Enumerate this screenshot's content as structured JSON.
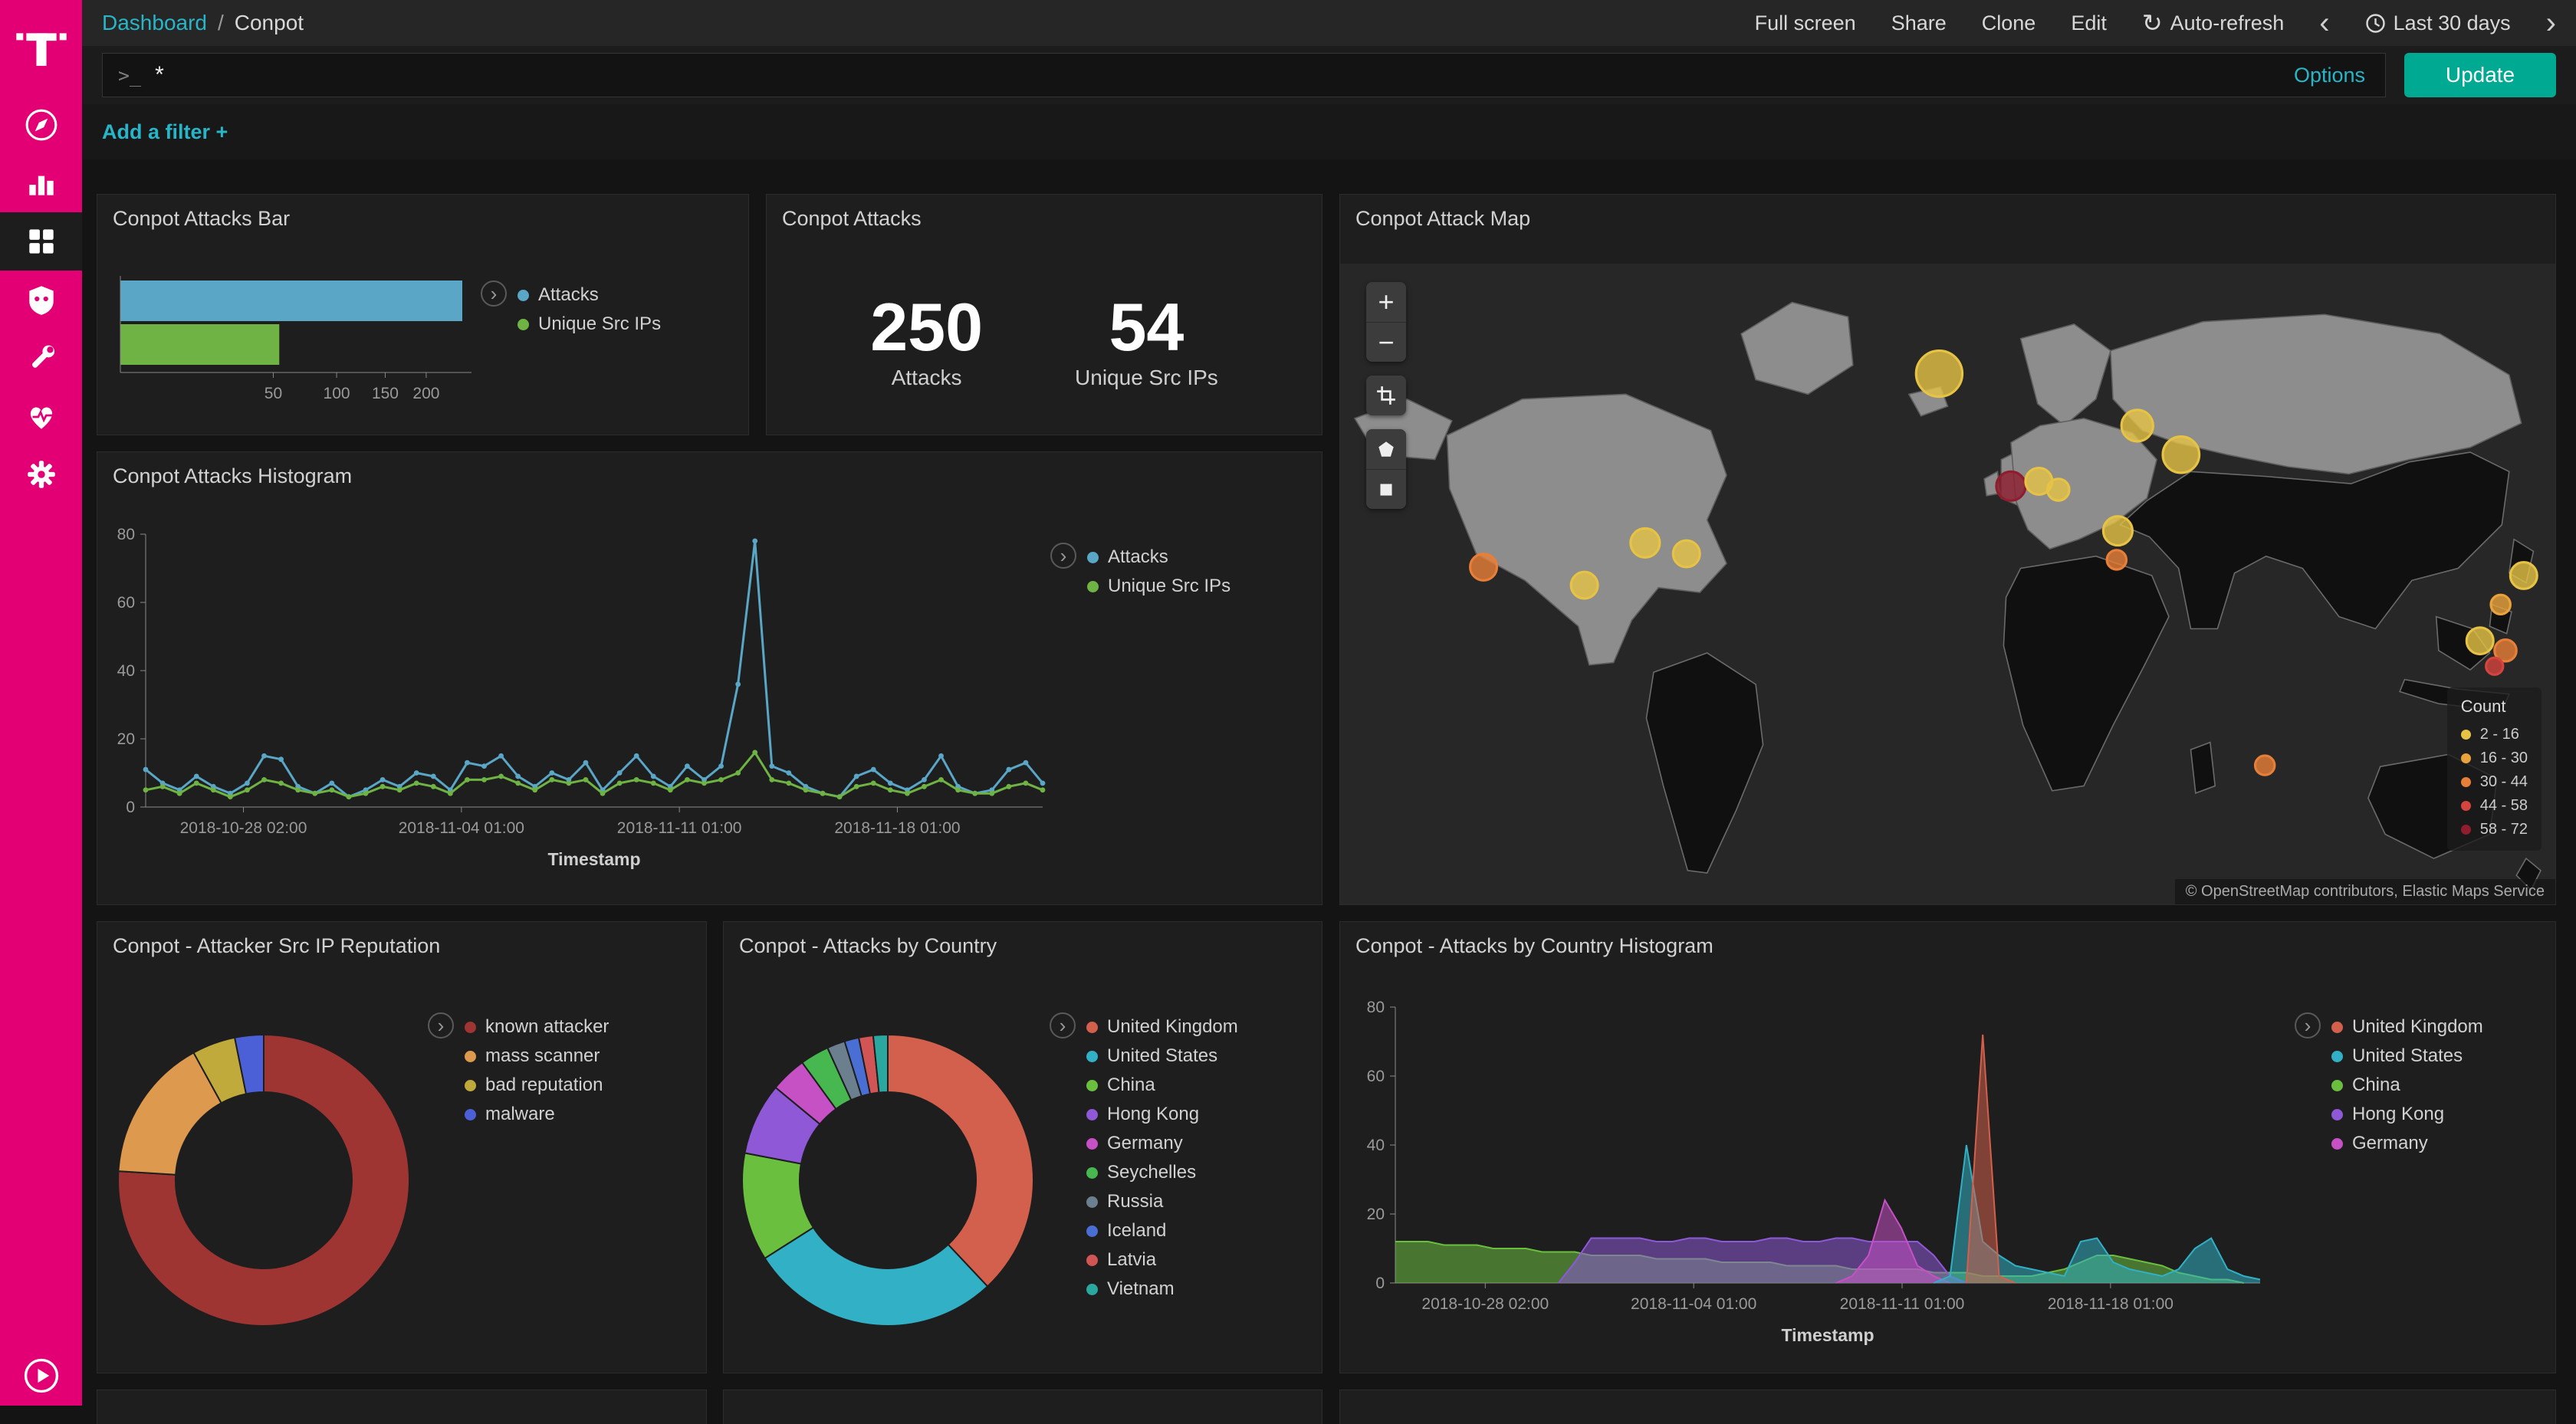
{
  "sidebar": {
    "logo_icon": "telekom-t-logo",
    "items": [
      {
        "icon": "discover-compass",
        "selected": false
      },
      {
        "icon": "visualize-bar-chart",
        "selected": false
      },
      {
        "icon": "dashboard-grid",
        "selected": true
      },
      {
        "icon": "shield",
        "selected": false
      },
      {
        "icon": "wrench",
        "selected": false
      },
      {
        "icon": "monitoring-heartbeat",
        "selected": false
      },
      {
        "icon": "settings-gear",
        "selected": false
      }
    ],
    "bottom_icon": "play-circle"
  },
  "topbar": {
    "breadcrumb_root": "Dashboard",
    "breadcrumb_separator": "/",
    "breadcrumb_current": "Conpot",
    "actions": [
      "Full screen",
      "Share",
      "Clone",
      "Edit"
    ],
    "auto_refresh_label": "Auto-refresh",
    "time_range_label": "Last 30 days",
    "prev_glyph": "‹",
    "next_glyph": "›",
    "refresh_glyph": "↻"
  },
  "querybar": {
    "prompt_glyph": ">_",
    "query": "*",
    "options_label": "Options",
    "update_label": "Update"
  },
  "filterbar": {
    "add_filter_label": "Add a filter +"
  },
  "ui": {
    "legend_toggle_glyph": "›",
    "zoom_in_glyph": "+",
    "zoom_out_glyph": "−"
  },
  "panels": {
    "attacks_bar": {
      "title": "Conpot Attacks Bar"
    },
    "attacks_metric": {
      "title": "Conpot Attacks"
    },
    "attack_map": {
      "title": "Conpot Attack Map"
    },
    "attacks_histogram": {
      "title": "Conpot Attacks Histogram"
    },
    "src_ip_reputation": {
      "title": "Conpot - Attacker Src IP Reputation"
    },
    "attacks_by_country": {
      "title": "Conpot - Attacks by Country"
    },
    "attacks_by_country_histogram": {
      "title": "Conpot - Attacks by Country Histogram"
    }
  },
  "chart_data": [
    {
      "id": "attacks_bar",
      "type": "bar",
      "orientation": "horizontal",
      "scale": "sqrt",
      "categories": [
        "Attacks",
        "Unique Src IPs"
      ],
      "values": [
        250,
        54
      ],
      "colors": [
        "#5aa6c7",
        "#6fb344"
      ],
      "xticks": [
        50,
        100,
        150,
        200
      ],
      "xmax": 250
    },
    {
      "id": "attacks_metric",
      "type": "metric",
      "metrics": [
        {
          "label": "Attacks",
          "value": 250
        },
        {
          "label": "Unique Src IPs",
          "value": 54
        }
      ]
    },
    {
      "id": "attack_map",
      "type": "map",
      "legend_title": "Count",
      "attribution": "© OpenStreetMap contributors, Elastic Maps Service",
      "buckets": [
        {
          "range": "2 - 16",
          "color": "#e6c345"
        },
        {
          "range": "16 - 30",
          "color": "#eaa23c"
        },
        {
          "range": "30 - 44",
          "color": "#e87f38"
        },
        {
          "range": "44 - 58",
          "color": "#d6443e"
        },
        {
          "range": "58 - 72",
          "color": "#8f1d2e"
        }
      ],
      "points": [
        {
          "x": 493,
          "y": 91,
          "r": 19,
          "bucket": 0
        },
        {
          "x": 656,
          "y": 134,
          "r": 13,
          "bucket": 0
        },
        {
          "x": 692,
          "y": 158,
          "r": 15,
          "bucket": 0
        },
        {
          "x": 552,
          "y": 184,
          "r": 12,
          "bucket": 4
        },
        {
          "x": 575,
          "y": 180,
          "r": 11,
          "bucket": 0
        },
        {
          "x": 591,
          "y": 187,
          "r": 9,
          "bucket": 0
        },
        {
          "x": 640,
          "y": 221,
          "r": 12,
          "bucket": 0
        },
        {
          "x": 639,
          "y": 245,
          "r": 8,
          "bucket": 2
        },
        {
          "x": 118,
          "y": 251,
          "r": 11,
          "bucket": 2
        },
        {
          "x": 201,
          "y": 266,
          "r": 11,
          "bucket": 0
        },
        {
          "x": 251,
          "y": 231,
          "r": 12,
          "bucket": 0
        },
        {
          "x": 285,
          "y": 240,
          "r": 11,
          "bucket": 0
        },
        {
          "x": 974,
          "y": 258,
          "r": 11,
          "bucket": 0
        },
        {
          "x": 955,
          "y": 282,
          "r": 8,
          "bucket": 1
        },
        {
          "x": 938,
          "y": 312,
          "r": 11,
          "bucket": 0
        },
        {
          "x": 959,
          "y": 320,
          "r": 9,
          "bucket": 2
        },
        {
          "x": 950,
          "y": 333,
          "r": 7,
          "bucket": 3
        },
        {
          "x": 761,
          "y": 415,
          "r": 8,
          "bucket": 2
        }
      ]
    },
    {
      "id": "attacks_histogram",
      "type": "line",
      "xlabel": "Timestamp",
      "ylim": [
        0,
        80
      ],
      "yticks": [
        0,
        20,
        40,
        60,
        80
      ],
      "x_ticks": [
        {
          "label": "2018-10-28 02:00",
          "pct": 10.9
        },
        {
          "label": "2018-11-04 01:00",
          "pct": 35.2
        },
        {
          "label": "2018-11-11 01:00",
          "pct": 59.5
        },
        {
          "label": "2018-11-18 01:00",
          "pct": 83.8
        }
      ],
      "series": [
        {
          "name": "Attacks",
          "color": "#5aa6c7",
          "values": [
            11,
            7,
            5,
            9,
            6,
            4,
            7,
            15,
            14,
            6,
            4,
            7,
            3,
            5,
            8,
            6,
            10,
            9,
            5,
            13,
            12,
            15,
            9,
            6,
            10,
            8,
            13,
            5,
            10,
            15,
            9,
            6,
            12,
            8,
            12,
            36,
            78,
            12,
            10,
            6,
            4,
            3,
            9,
            11,
            7,
            5,
            8,
            15,
            6,
            4,
            5,
            11,
            13,
            7
          ]
        },
        {
          "name": "Unique Src IPs",
          "color": "#6fb344",
          "values": [
            5,
            6,
            4,
            7,
            5,
            3,
            5,
            8,
            7,
            5,
            4,
            5,
            3,
            4,
            6,
            5,
            7,
            6,
            4,
            8,
            8,
            9,
            7,
            5,
            8,
            7,
            8,
            4,
            7,
            8,
            7,
            5,
            8,
            7,
            8,
            10,
            16,
            8,
            7,
            5,
            4,
            3,
            6,
            7,
            5,
            4,
            6,
            8,
            5,
            4,
            4,
            6,
            7,
            5
          ]
        }
      ]
    },
    {
      "id": "src_ip_reputation",
      "type": "pie",
      "donut": true,
      "slices": [
        {
          "label": "known attacker",
          "value": 190,
          "color": "#9e3533"
        },
        {
          "label": "mass scanner",
          "value": 40,
          "color": "#dd9a4e"
        },
        {
          "label": "bad reputation",
          "value": 12,
          "color": "#c0aa3c"
        },
        {
          "label": "malware",
          "value": 8,
          "color": "#4b60d6"
        }
      ]
    },
    {
      "id": "attacks_by_country",
      "type": "pie",
      "donut": true,
      "slices": [
        {
          "label": "United Kingdom",
          "value": 95,
          "color": "#d2604c"
        },
        {
          "label": "United States",
          "value": 70,
          "color": "#32b0c5"
        },
        {
          "label": "China",
          "value": 30,
          "color": "#6bbf3f"
        },
        {
          "label": "Hong Kong",
          "value": 20,
          "color": "#8e58d6"
        },
        {
          "label": "Germany",
          "value": 10,
          "color": "#c551c5"
        },
        {
          "label": "Seychelles",
          "value": 8,
          "color": "#46b84f"
        },
        {
          "label": "Russia",
          "value": 5,
          "color": "#6c7f8e"
        },
        {
          "label": "Iceland",
          "value": 4,
          "color": "#4a6fd4"
        },
        {
          "label": "Latvia",
          "value": 4,
          "color": "#d25555"
        },
        {
          "label": "Vietnam",
          "value": 4,
          "color": "#2aa79e"
        }
      ]
    },
    {
      "id": "attacks_by_country_histogram",
      "type": "area",
      "xlabel": "Timestamp",
      "ylim": [
        0,
        80
      ],
      "yticks": [
        0,
        20,
        40,
        60,
        80
      ],
      "fill_opacity": 0.55,
      "draw_order": [
        2,
        3,
        4,
        1,
        0
      ],
      "x_ticks": [
        {
          "label": "2018-10-28 02:00",
          "pct": 10.4
        },
        {
          "label": "2018-11-04 01:00",
          "pct": 34.5
        },
        {
          "label": "2018-11-11 01:00",
          "pct": 58.6
        },
        {
          "label": "2018-11-18 01:00",
          "pct": 82.7
        }
      ],
      "series": [
        {
          "name": "United Kingdom",
          "color": "#d2604c",
          "values": [
            0,
            0,
            0,
            0,
            0,
            0,
            0,
            0,
            0,
            0,
            0,
            0,
            0,
            0,
            0,
            0,
            0,
            0,
            0,
            0,
            0,
            0,
            0,
            0,
            0,
            0,
            0,
            0,
            0,
            0,
            0,
            0,
            0,
            0,
            0,
            0,
            72,
            2,
            0,
            0,
            0,
            0,
            0,
            0,
            0,
            0,
            0,
            0,
            0,
            0,
            0,
            0,
            0,
            0
          ]
        },
        {
          "name": "United States",
          "color": "#32b0c5",
          "values": [
            0,
            0,
            0,
            0,
            0,
            0,
            0,
            0,
            0,
            0,
            0,
            0,
            0,
            0,
            0,
            0,
            0,
            0,
            0,
            0,
            0,
            0,
            0,
            0,
            0,
            0,
            0,
            0,
            0,
            0,
            0,
            0,
            0,
            0,
            2,
            40,
            12,
            8,
            5,
            4,
            3,
            2,
            12,
            13,
            6,
            4,
            3,
            2,
            4,
            10,
            13,
            4,
            2,
            1
          ]
        },
        {
          "name": "China",
          "color": "#6bbf3f",
          "values": [
            12,
            12,
            12,
            11,
            11,
            11,
            10,
            10,
            10,
            9,
            9,
            9,
            8,
            8,
            8,
            8,
            7,
            7,
            7,
            7,
            6,
            6,
            6,
            6,
            5,
            5,
            5,
            5,
            4,
            4,
            4,
            4,
            4,
            3,
            3,
            3,
            2,
            2,
            2,
            2,
            3,
            4,
            6,
            8,
            8,
            7,
            6,
            5,
            3,
            2,
            1,
            1,
            0,
            0
          ]
        },
        {
          "name": "Hong Kong",
          "color": "#8e58d6",
          "values": [
            0,
            0,
            0,
            0,
            0,
            0,
            0,
            0,
            0,
            0,
            0,
            6,
            13,
            13,
            13,
            13,
            12,
            12,
            13,
            13,
            12,
            12,
            12,
            13,
            13,
            12,
            12,
            13,
            13,
            12,
            12,
            12,
            12,
            8,
            2,
            0,
            0,
            0,
            0,
            0,
            0,
            0,
            0,
            0,
            0,
            0,
            0,
            0,
            0,
            0,
            0,
            0,
            0,
            0
          ]
        },
        {
          "name": "Germany",
          "color": "#c551c5",
          "values": [
            0,
            0,
            0,
            0,
            0,
            0,
            0,
            0,
            0,
            0,
            0,
            0,
            0,
            0,
            0,
            0,
            0,
            0,
            0,
            0,
            0,
            0,
            0,
            0,
            0,
            0,
            0,
            0,
            2,
            8,
            24,
            16,
            5,
            2,
            0,
            0,
            0,
            0,
            0,
            0,
            0,
            0,
            0,
            0,
            0,
            0,
            0,
            0,
            0,
            0,
            0,
            0,
            0,
            0
          ]
        }
      ]
    }
  ]
}
